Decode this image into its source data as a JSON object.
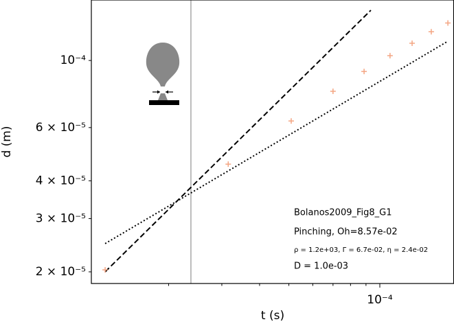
{
  "chart_data": {
    "type": "scatter",
    "log_x": true,
    "log_y": true,
    "x_label": "t (s)",
    "y_label": "d (m)",
    "xlim": [
      1.11e-05,
      0.000176
    ],
    "ylim": [
      1.83e-05,
      0.0001585
    ],
    "xticks": [
      {
        "value": 0.0001,
        "label": "10⁻⁴"
      }
    ],
    "xminorticks": [
      2e-05,
      3e-05,
      4e-05,
      5e-05,
      6e-05,
      7e-05,
      8e-05,
      9e-05
    ],
    "yticks": [
      {
        "value": 0.0001,
        "label": "10⁻⁴"
      },
      {
        "value": 6e-05,
        "label": "6 × 10⁻⁵"
      },
      {
        "value": 4e-05,
        "label": "4 × 10⁻⁵"
      },
      {
        "value": 3e-05,
        "label": "3 × 10⁻⁵"
      },
      {
        "value": 2e-05,
        "label": "2 × 10⁻⁵"
      }
    ],
    "vline": 2.37e-05,
    "x": [
      1.233e-05,
      3.15e-05,
      5.09e-05,
      7e-05,
      8.87e-05,
      0.0001081,
      0.0001279,
      0.000148,
      0.000168
    ],
    "values": [
      2.03e-05,
      4.54e-05,
      6.31e-05,
      7.91e-05,
      9.2e-05,
      0.0001037,
      0.000114,
      0.0001245,
      0.000133
    ],
    "color": "#f4a582",
    "lines": [
      {
        "x": [
          1.233e-05,
          9.34e-05
        ],
        "values": [
          2e-05,
          0.0001466
        ],
        "style": "dashed",
        "color": "#000000"
      },
      {
        "x": [
          1.233e-05,
          0.000168
        ],
        "values": [
          2.48e-05,
          0.0001158
        ],
        "style": "dotted",
        "color": "#000000"
      }
    ],
    "annotations": [
      "Bolanos2009_Fig8_G1",
      "Pinching, Oh=8.57e-02",
      "ρ = 1.2e+03, Γ = 6.7e-02, η = 2.4e-02",
      "D = 1.0e-03"
    ]
  }
}
